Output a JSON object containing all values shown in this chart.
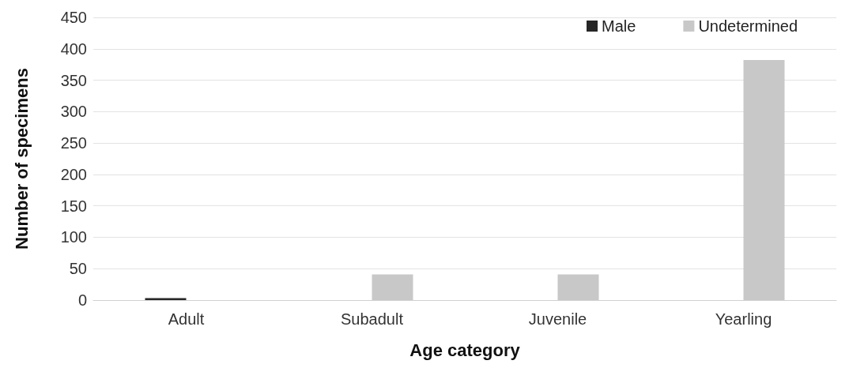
{
  "chart_data": {
    "type": "bar",
    "xlabel": "Age category",
    "ylabel": "Number of specimens",
    "categories": [
      "Adult",
      "Subadult",
      "Juvenile",
      "Yearling"
    ],
    "series": [
      {
        "name": "Male",
        "color": "#262626",
        "values": [
          3,
          0,
          0,
          0
        ]
      },
      {
        "name": "Undetermined",
        "color": "#c8c8c8",
        "values": [
          0,
          41,
          41,
          382
        ]
      }
    ],
    "ylim": [
      0,
      450
    ],
    "yticks": [
      0,
      50,
      100,
      150,
      200,
      250,
      300,
      350,
      400,
      450
    ],
    "grid": "y",
    "legend": "top right"
  }
}
